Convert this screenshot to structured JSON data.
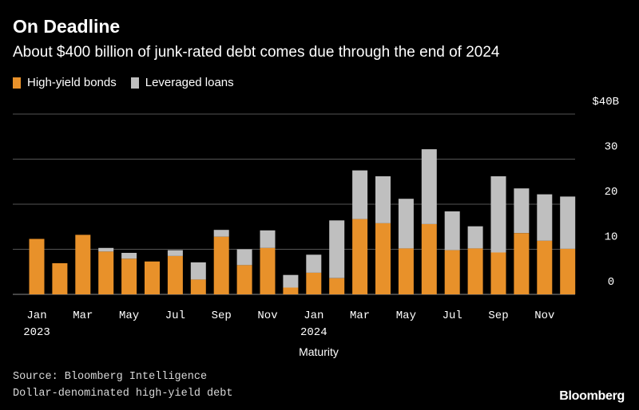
{
  "chart_data": {
    "type": "bar",
    "stacked": true,
    "title": "On Deadline",
    "subtitle": "About $400 billion of junk-rated debt comes due through the end of 2024",
    "xlabel": "Maturity",
    "ylabel": "",
    "ylim": [
      0,
      40
    ],
    "yticks": [
      0,
      10,
      20,
      30,
      40
    ],
    "ytick_labels": [
      "0",
      "10",
      "20",
      "30",
      "$40B"
    ],
    "x_tick_labels": [
      {
        "index": 0,
        "label": "Jan",
        "sub": "2023"
      },
      {
        "index": 2,
        "label": "Mar",
        "sub": ""
      },
      {
        "index": 4,
        "label": "May",
        "sub": ""
      },
      {
        "index": 6,
        "label": "Jul",
        "sub": ""
      },
      {
        "index": 8,
        "label": "Sep",
        "sub": ""
      },
      {
        "index": 10,
        "label": "Nov",
        "sub": ""
      },
      {
        "index": 12,
        "label": "Jan",
        "sub": "2024"
      },
      {
        "index": 14,
        "label": "Mar",
        "sub": ""
      },
      {
        "index": 16,
        "label": "May",
        "sub": ""
      },
      {
        "index": 18,
        "label": "Jul",
        "sub": ""
      },
      {
        "index": 20,
        "label": "Sep",
        "sub": ""
      },
      {
        "index": 22,
        "label": "Nov",
        "sub": ""
      }
    ],
    "categories": [
      "Jan 2023",
      "Feb 2023",
      "Mar 2023",
      "Apr 2023",
      "May 2023",
      "Jun 2023",
      "Jul 2023",
      "Aug 2023",
      "Sep 2023",
      "Oct 2023",
      "Nov 2023",
      "Dec 2023",
      "Jan 2024",
      "Feb 2024",
      "Mar 2024",
      "Apr 2024",
      "May 2024",
      "Jun 2024",
      "Jul 2024",
      "Aug 2024",
      "Sep 2024",
      "Oct 2024",
      "Nov 2024",
      "Dec 2024"
    ],
    "series": [
      {
        "name": "High-yield bonds",
        "color": "#e8912a",
        "values": [
          12.3,
          6.9,
          13.2,
          9.5,
          7.9,
          7.3,
          8.5,
          3.3,
          12.8,
          6.5,
          10.3,
          1.5,
          4.8,
          3.6,
          16.7,
          15.8,
          10.2,
          15.6,
          9.8,
          10.2,
          9.3,
          13.6,
          11.9,
          10.1
        ]
      },
      {
        "name": "Leveraged loans",
        "color": "#bfbfbf",
        "values": [
          0,
          0,
          0,
          0.8,
          1.3,
          0,
          1.3,
          3.8,
          1.5,
          3.5,
          3.9,
          2.8,
          4.0,
          12.8,
          10.8,
          10.4,
          11.0,
          16.6,
          8.6,
          4.9,
          16.9,
          9.9,
          10.3,
          11.6
        ]
      }
    ],
    "legend_position": "top-left",
    "gridlines": true
  },
  "source_line1": "Source: Bloomberg Intelligence",
  "source_line2": "Dollar-denominated high-yield debt",
  "logo_text": "Bloomberg",
  "colors": {
    "background": "#000000",
    "grid": "#555555",
    "text": "#ffffff"
  }
}
